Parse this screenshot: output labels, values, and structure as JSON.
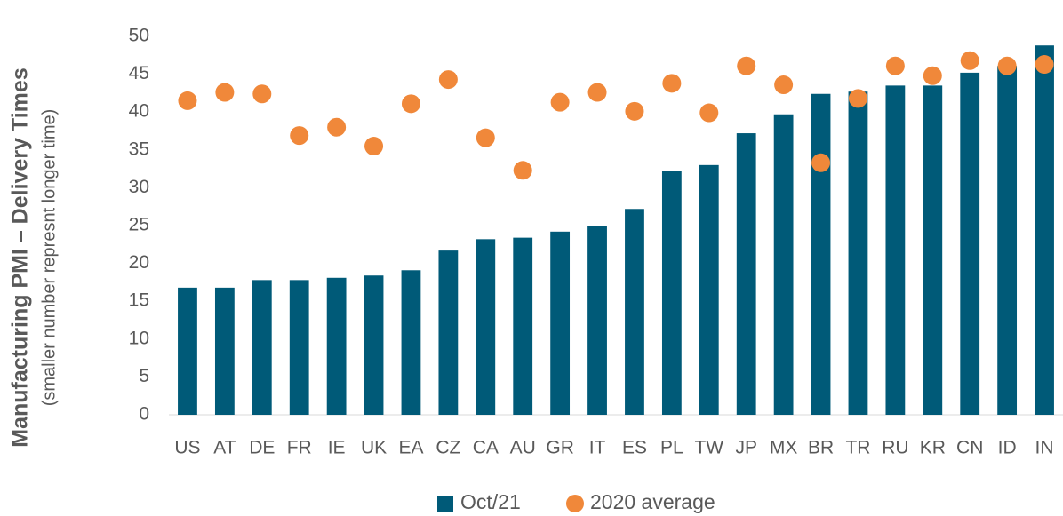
{
  "chart_data": {
    "type": "bar",
    "ylabel": "Manufacturing PMI – Delivery Times",
    "ylabel_note": "(smaller number represnt longer time)",
    "categories": [
      "US",
      "AT",
      "DE",
      "FR",
      "IE",
      "UK",
      "EA",
      "CZ",
      "CA",
      "AU",
      "GR",
      "IT",
      "ES",
      "PL",
      "TW",
      "JP",
      "MX",
      "BR",
      "TR",
      "RU",
      "KR",
      "CN",
      "ID",
      "IN"
    ],
    "series": [
      {
        "name": "Oct/21",
        "mark": "bar",
        "color": "#005a78",
        "values": [
          16.8,
          16.8,
          17.8,
          17.8,
          18.1,
          18.4,
          19.1,
          21.7,
          23.2,
          23.4,
          24.2,
          24.9,
          27.2,
          32.2,
          33.0,
          37.2,
          39.7,
          42.4,
          42.7,
          43.5,
          43.5,
          45.2,
          46.1,
          48.8
        ]
      },
      {
        "name": "2020 average",
        "mark": "dot",
        "color": "#f0883a",
        "values": [
          41.5,
          42.6,
          42.4,
          36.9,
          38.0,
          35.5,
          41.1,
          44.3,
          36.6,
          32.3,
          41.3,
          42.6,
          40.1,
          43.8,
          39.9,
          46.1,
          43.6,
          33.3,
          41.8,
          46.1,
          44.8,
          46.8,
          46.1,
          46.3
        ]
      }
    ],
    "ylim": [
      0,
      50
    ],
    "yticks": [
      0,
      5,
      10,
      15,
      20,
      25,
      30,
      35,
      40,
      45,
      50
    ],
    "grid": false,
    "legend": "bottom"
  }
}
